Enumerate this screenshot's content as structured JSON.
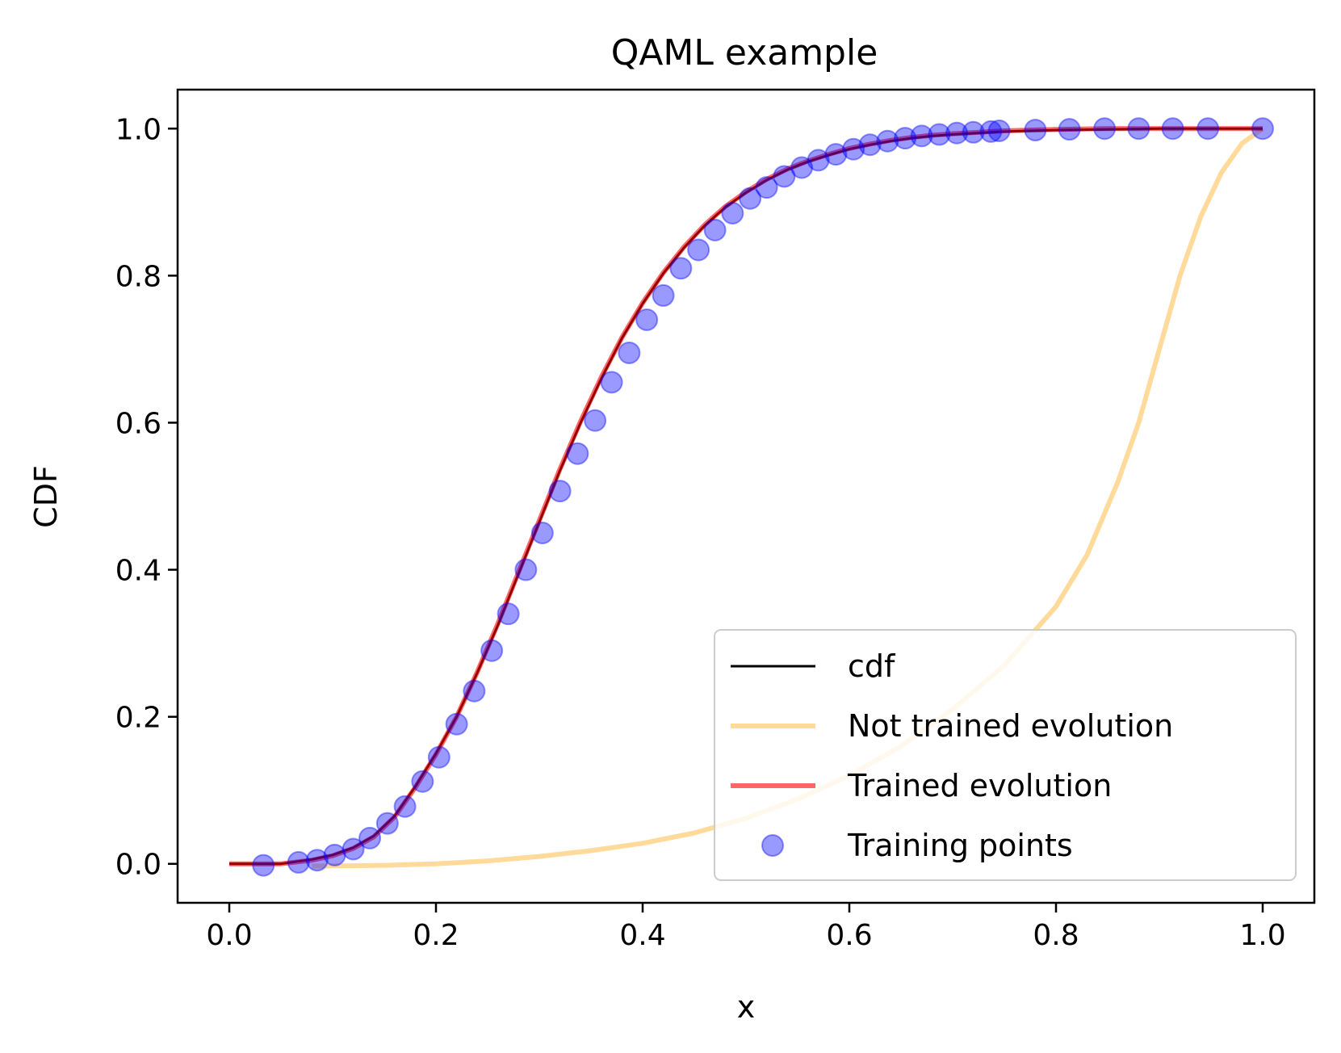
{
  "chart_data": {
    "type": "line",
    "title": "QAML example",
    "xlabel": "x",
    "ylabel": "CDF",
    "xlim": [
      -0.05,
      1.05
    ],
    "ylim": [
      -0.053,
      1.053
    ],
    "xticks": [
      0.0,
      0.2,
      0.4,
      0.6,
      0.8,
      1.0
    ],
    "xtick_labels": [
      "0.0",
      "0.2",
      "0.4",
      "0.6",
      "0.8",
      "1.0"
    ],
    "yticks": [
      0.0,
      0.2,
      0.4,
      0.6,
      0.8,
      1.0
    ],
    "ytick_labels": [
      "0.0",
      "0.2",
      "0.4",
      "0.6",
      "0.8",
      "1.0"
    ],
    "grid": false,
    "legend_position": "lower-right",
    "series": [
      {
        "name": "cdf",
        "kind": "line",
        "color": "#000000",
        "x": [
          0.0,
          0.05,
          0.08,
          0.1,
          0.12,
          0.14,
          0.16,
          0.18,
          0.2,
          0.22,
          0.24,
          0.26,
          0.28,
          0.3,
          0.32,
          0.34,
          0.36,
          0.38,
          0.4,
          0.42,
          0.44,
          0.46,
          0.48,
          0.5,
          0.52,
          0.54,
          0.56,
          0.58,
          0.6,
          0.62,
          0.64,
          0.66,
          0.68,
          0.7,
          0.75,
          0.8,
          0.85,
          0.9,
          0.95,
          1.0
        ],
        "y": [
          0.0,
          0.0,
          0.006,
          0.012,
          0.022,
          0.038,
          0.065,
          0.105,
          0.15,
          0.2,
          0.26,
          0.325,
          0.395,
          0.465,
          0.535,
          0.6,
          0.66,
          0.715,
          0.762,
          0.803,
          0.838,
          0.868,
          0.893,
          0.913,
          0.93,
          0.944,
          0.955,
          0.964,
          0.972,
          0.978,
          0.983,
          0.987,
          0.99,
          0.992,
          0.996,
          0.998,
          0.999,
          1.0,
          1.0,
          1.0
        ]
      },
      {
        "name": "Not trained evolution",
        "kind": "line",
        "color": "#ffc259",
        "x": [
          0.08,
          0.15,
          0.2,
          0.25,
          0.3,
          0.35,
          0.4,
          0.45,
          0.5,
          0.55,
          0.6,
          0.65,
          0.7,
          0.75,
          0.8,
          0.83,
          0.86,
          0.88,
          0.9,
          0.92,
          0.94,
          0.96,
          0.98,
          1.0
        ],
        "y": [
          -0.003,
          -0.002,
          0.0,
          0.004,
          0.01,
          0.018,
          0.028,
          0.042,
          0.062,
          0.088,
          0.12,
          0.16,
          0.21,
          0.27,
          0.35,
          0.42,
          0.52,
          0.6,
          0.7,
          0.8,
          0.88,
          0.94,
          0.98,
          1.0
        ]
      },
      {
        "name": "Trained evolution",
        "kind": "line",
        "color": "#ff0000",
        "x": [
          0.0,
          0.05,
          0.08,
          0.1,
          0.12,
          0.14,
          0.16,
          0.18,
          0.2,
          0.22,
          0.24,
          0.26,
          0.28,
          0.3,
          0.32,
          0.34,
          0.36,
          0.38,
          0.4,
          0.42,
          0.44,
          0.46,
          0.48,
          0.5,
          0.52,
          0.54,
          0.56,
          0.58,
          0.6,
          0.62,
          0.64,
          0.66,
          0.68,
          0.7,
          0.75,
          0.8,
          0.85,
          0.9,
          0.95,
          1.0
        ],
        "y": [
          0.0,
          0.0,
          0.005,
          0.011,
          0.021,
          0.037,
          0.064,
          0.104,
          0.149,
          0.2,
          0.261,
          0.327,
          0.397,
          0.467,
          0.537,
          0.602,
          0.662,
          0.716,
          0.763,
          0.804,
          0.839,
          0.869,
          0.894,
          0.914,
          0.931,
          0.945,
          0.956,
          0.965,
          0.973,
          0.979,
          0.984,
          0.988,
          0.991,
          0.993,
          0.997,
          0.999,
          1.0,
          1.0,
          1.0,
          1.0
        ]
      },
      {
        "name": "Training points",
        "kind": "scatter",
        "color": "#0000ff",
        "x": [
          0.033,
          0.067,
          0.085,
          0.102,
          0.12,
          0.136,
          0.153,
          0.17,
          0.187,
          0.203,
          0.22,
          0.237,
          0.254,
          0.27,
          0.287,
          0.303,
          0.32,
          0.337,
          0.354,
          0.37,
          0.387,
          0.404,
          0.42,
          0.437,
          0.454,
          0.47,
          0.487,
          0.504,
          0.52,
          0.537,
          0.554,
          0.57,
          0.587,
          0.604,
          0.62,
          0.637,
          0.654,
          0.67,
          0.687,
          0.704,
          0.72,
          0.737,
          0.745,
          0.78,
          0.813,
          0.847,
          0.88,
          0.913,
          0.947,
          1.0
        ],
        "y": [
          -0.002,
          0.002,
          0.005,
          0.012,
          0.02,
          0.035,
          0.055,
          0.078,
          0.112,
          0.145,
          0.19,
          0.235,
          0.29,
          0.34,
          0.4,
          0.45,
          0.507,
          0.558,
          0.603,
          0.655,
          0.695,
          0.74,
          0.773,
          0.81,
          0.835,
          0.862,
          0.885,
          0.905,
          0.92,
          0.935,
          0.947,
          0.957,
          0.965,
          0.972,
          0.978,
          0.983,
          0.987,
          0.99,
          0.992,
          0.994,
          0.995,
          0.996,
          0.997,
          0.998,
          0.999,
          1.0,
          1.0,
          1.0,
          1.0,
          1.0
        ]
      }
    ]
  }
}
